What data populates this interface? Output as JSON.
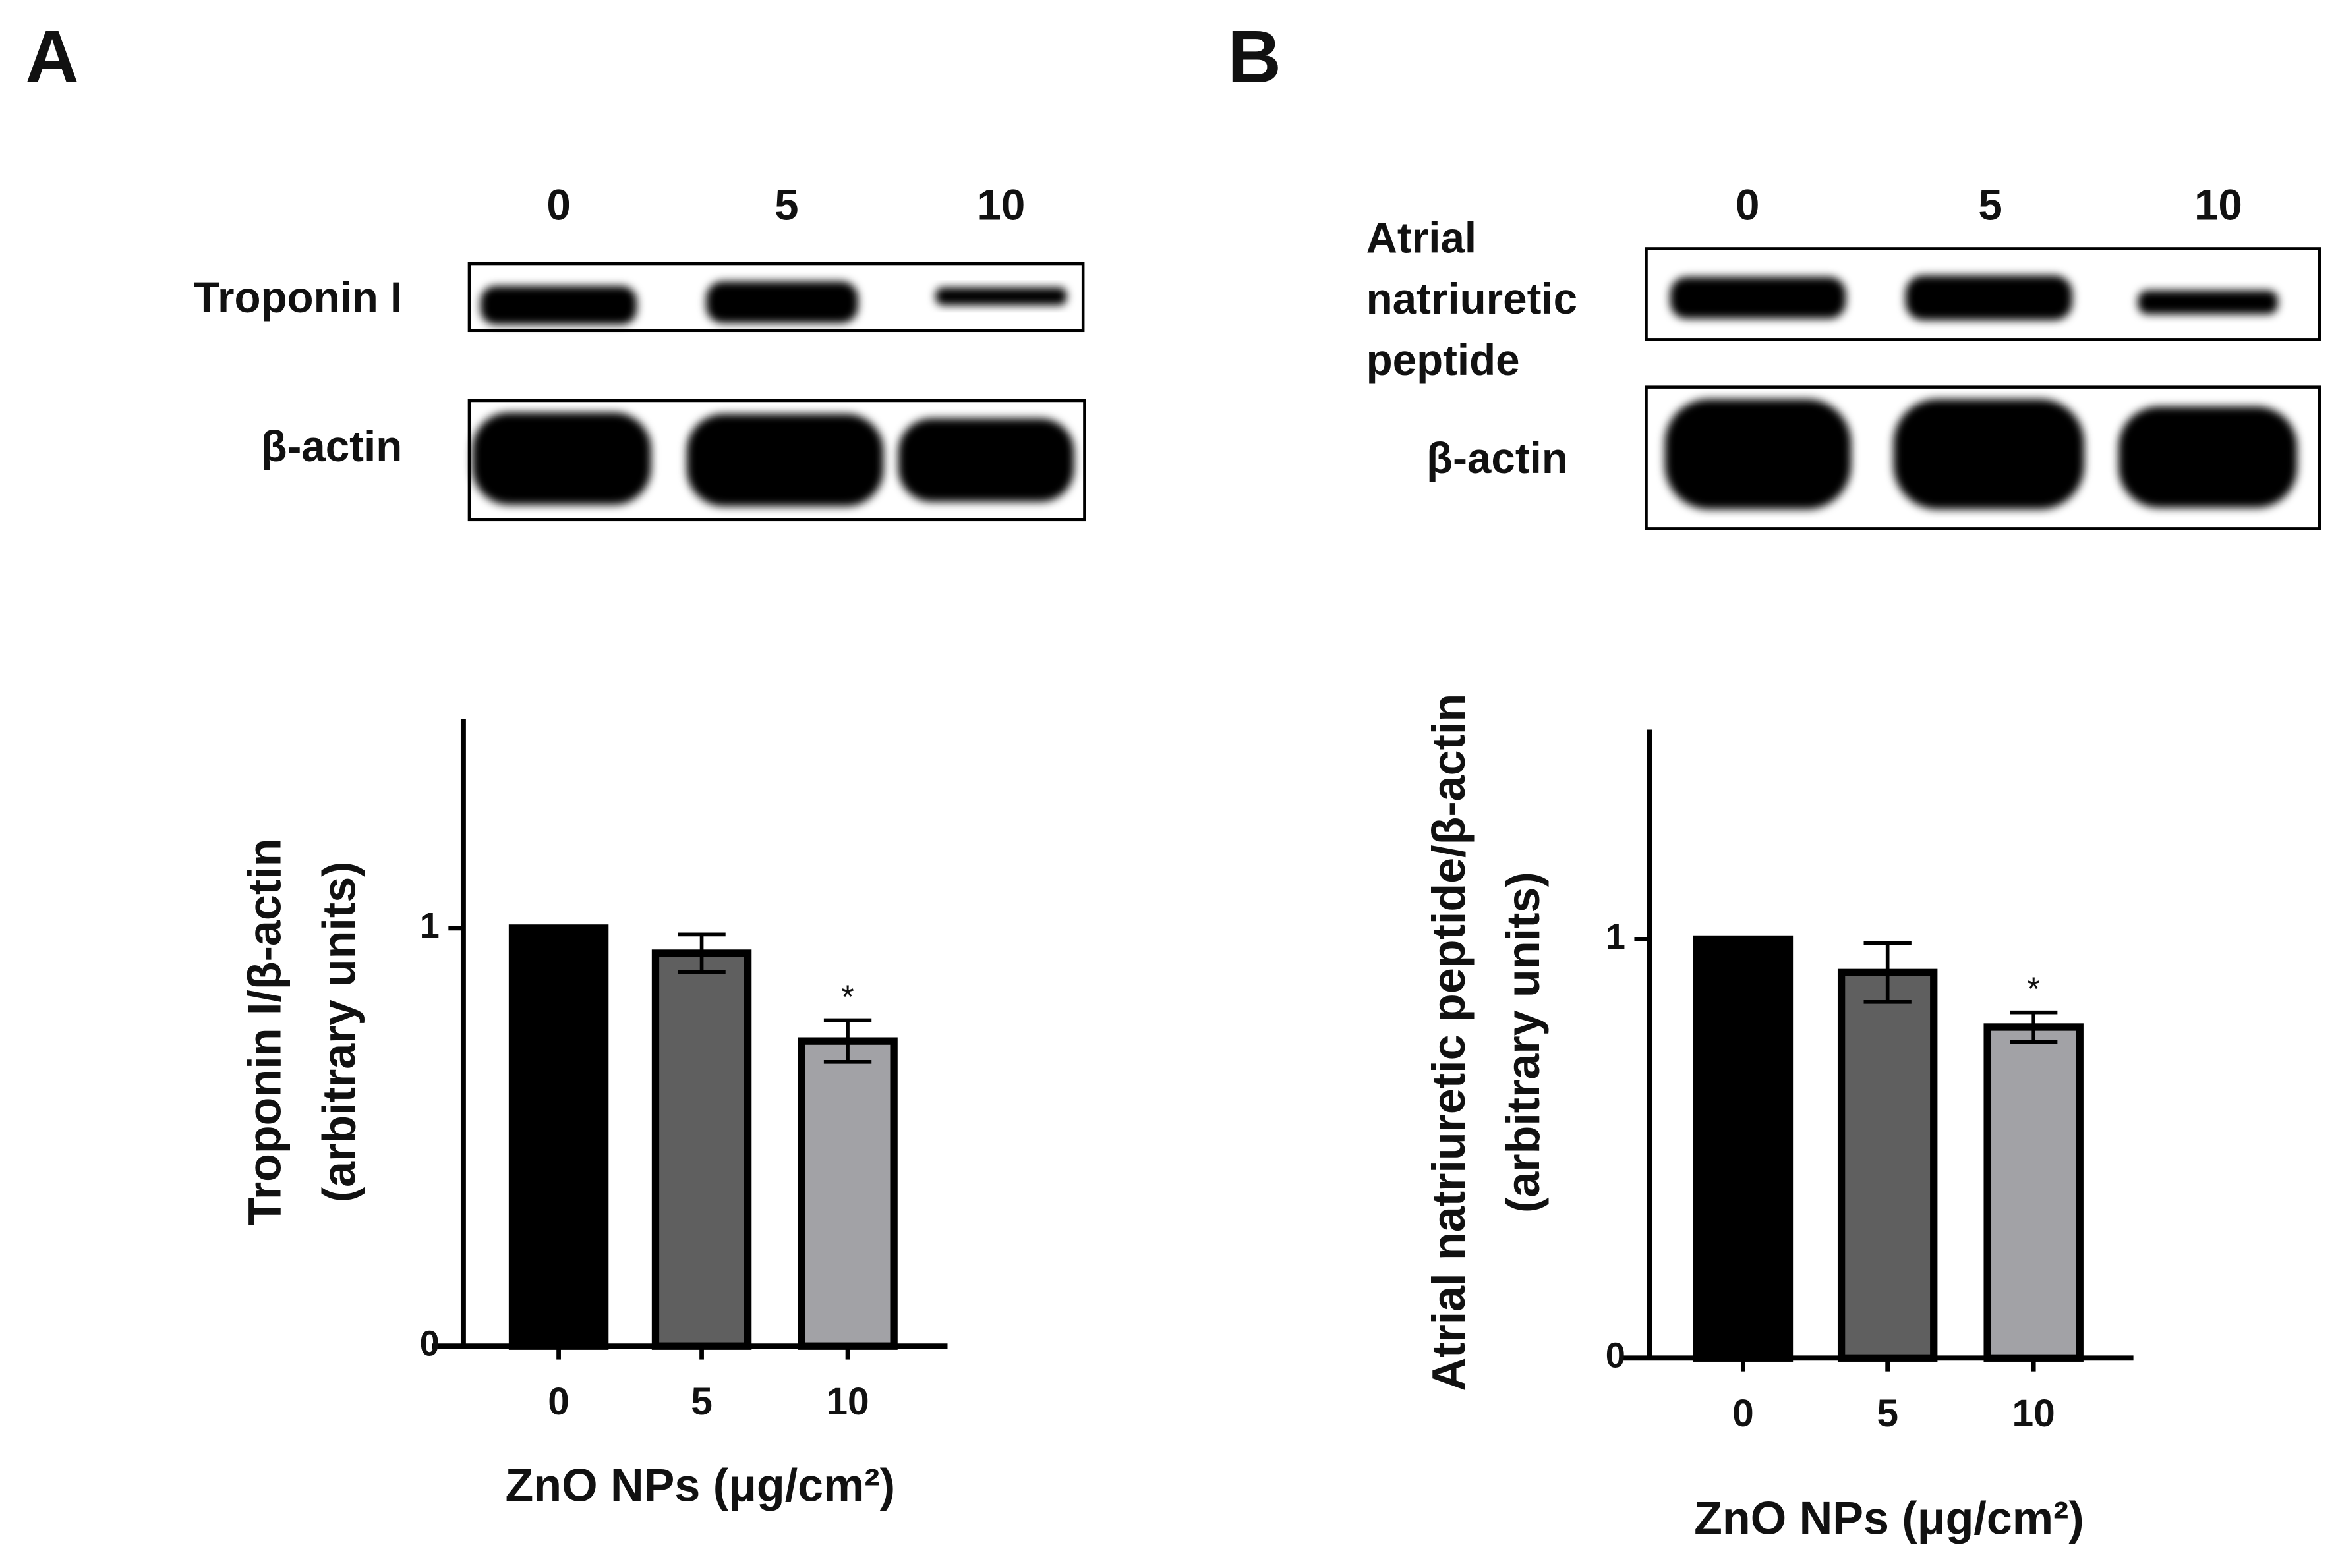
{
  "chart_data": [
    {
      "panel": "A",
      "type": "bar",
      "blot": {
        "lanes": [
          "0",
          "5",
          "10"
        ],
        "rows": [
          [
            "Troponin I"
          ],
          [
            "β-actin"
          ]
        ]
      },
      "categories": [
        "0",
        "5",
        "10"
      ],
      "values": [
        1.0,
        0.94,
        0.73
      ],
      "errors": [
        null,
        0.045,
        0.05
      ],
      "colors": [
        "#000000",
        "#5f5f5f",
        "#a2a2a6"
      ],
      "annotations": [
        null,
        null,
        "*"
      ],
      "ylim": [
        0,
        1.5
      ],
      "yticks": [
        0,
        1
      ],
      "ylabel": [
        "Troponin I/β-actin",
        "(arbitrary units)"
      ],
      "xlabel": "ZnO NPs (μg/cm²)"
    },
    {
      "panel": "B",
      "type": "bar",
      "blot": {
        "lanes": [
          "0",
          "5",
          "10"
        ],
        "rows": [
          [
            "Atrial",
            "natriuretic",
            "peptide"
          ],
          [
            "β-actin"
          ]
        ]
      },
      "categories": [
        "0",
        "5",
        "10"
      ],
      "values": [
        1.0,
        0.92,
        0.79
      ],
      "errors": [
        null,
        0.07,
        0.035
      ],
      "colors": [
        "#000000",
        "#5f5f5f",
        "#a2a2a6"
      ],
      "annotations": [
        null,
        null,
        "*"
      ],
      "ylim": [
        0,
        1.5
      ],
      "yticks": [
        0,
        1
      ],
      "ylabel": [
        "Atrial natriuretic peptide/β-actin",
        "(arbitrary units)"
      ],
      "xlabel": "ZnO NPs (μg/cm²)"
    }
  ]
}
